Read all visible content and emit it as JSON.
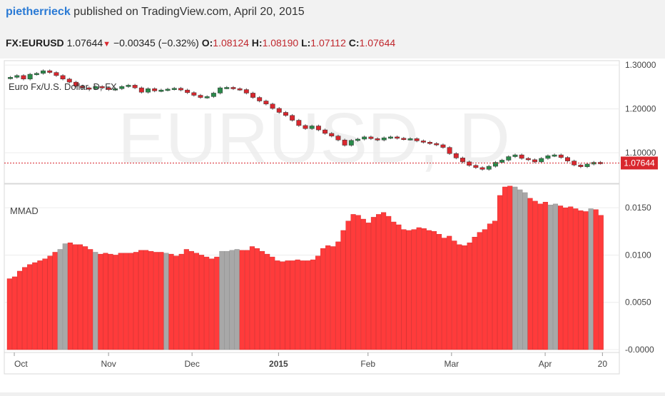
{
  "header": {
    "author": "pietherrieck",
    "published_text": " published on TradingView.com, April 20, 2015",
    "symbol": "FX:EURUSD",
    "last": "1.07644",
    "change": "−0.00345 (−0.32%)",
    "ohlc": [
      {
        "label": "O:",
        "value": "1.08124"
      },
      {
        "label": "H:",
        "value": "1.08190"
      },
      {
        "label": "L:",
        "value": "1.07112"
      },
      {
        "label": "C:",
        "value": "1.07644"
      }
    ]
  },
  "colors": {
    "up": "#2a8a4a",
    "down": "#d9272e",
    "bar_red": "#ff3b3b",
    "bar_gray": "#a8a8a8",
    "price_line": "#d9272e"
  },
  "chart_data": [
    {
      "type": "candlestick",
      "title": "",
      "series_label": "Euro Fx/U.S. Dollar, D, FX",
      "watermark": "EURUSD, D",
      "y_ticks": [
        "1.30000",
        "1.20000",
        "1.10000"
      ],
      "ylim": [
        1.03,
        1.31
      ],
      "last_price_label": "1.07644",
      "last_price": 1.07644,
      "x_ticks": [
        "Oct",
        "Nov",
        "Dec",
        "2015",
        "Feb",
        "Mar",
        "Apr",
        "20"
      ],
      "close_path": [
        1.272,
        1.276,
        1.268,
        1.279,
        1.281,
        1.287,
        1.283,
        1.276,
        1.268,
        1.261,
        1.252,
        1.248,
        1.246,
        1.251,
        1.248,
        1.244,
        1.246,
        1.251,
        1.254,
        1.248,
        1.238,
        1.246,
        1.241,
        1.243,
        1.245,
        1.247,
        1.243,
        1.237,
        1.231,
        1.226,
        1.228,
        1.236,
        1.248,
        1.249,
        1.246,
        1.244,
        1.236,
        1.226,
        1.218,
        1.211,
        1.201,
        1.192,
        1.185,
        1.174,
        1.162,
        1.155,
        1.161,
        1.152,
        1.144,
        1.138,
        1.129,
        1.117,
        1.128,
        1.131,
        1.136,
        1.132,
        1.129,
        1.134,
        1.136,
        1.133,
        1.131,
        1.132,
        1.127,
        1.124,
        1.121,
        1.118,
        1.112,
        1.098,
        1.088,
        1.079,
        1.071,
        1.066,
        1.062,
        1.069,
        1.078,
        1.083,
        1.091,
        1.095,
        1.087,
        1.084,
        1.079,
        1.087,
        1.093,
        1.095,
        1.089,
        1.081,
        1.072,
        1.068,
        1.074,
        1.078,
        1.076
      ]
    },
    {
      "type": "bar",
      "title": "",
      "series_label": "MMAD",
      "y_ticks": [
        "0.0150",
        "0.0100",
        "0.0050",
        "-0.0000"
      ],
      "ylim": [
        -0.0003,
        0.0175
      ],
      "series": [
        {
          "values": [
            0.0075,
            0.0077,
            0.0083,
            0.0087,
            0.009,
            0.0092,
            0.0094,
            0.0096,
            0.0099,
            0.0103,
            0.0106,
            0.0112,
            0.0113,
            0.0111,
            0.0111,
            0.0109,
            0.0106,
            0.0103,
            0.0101,
            0.0102,
            0.0101,
            0.01,
            0.0102,
            0.0102,
            0.0102,
            0.0103,
            0.0105,
            0.0105,
            0.0104,
            0.0103,
            0.0103,
            0.0102,
            0.0101,
            0.0099,
            0.0101,
            0.0106,
            0.0104,
            0.0102,
            0.01,
            0.0098,
            0.0096,
            0.0098,
            0.0104,
            0.0104,
            0.0105,
            0.0106,
            0.0105,
            0.0105,
            0.0109,
            0.0107,
            0.0104,
            0.0101,
            0.0098,
            0.0094,
            0.0093,
            0.0094,
            0.0094,
            0.0095,
            0.0094,
            0.0094,
            0.0095,
            0.0099,
            0.0107,
            0.011,
            0.0109,
            0.0114,
            0.0126,
            0.0136,
            0.0143,
            0.0142,
            0.0138,
            0.0134,
            0.014,
            0.0143,
            0.0145,
            0.0141,
            0.0135,
            0.0132,
            0.0127,
            0.0126,
            0.0127,
            0.0129,
            0.0128,
            0.0126,
            0.0125,
            0.0122,
            0.0118,
            0.012,
            0.0115,
            0.0111,
            0.011,
            0.0113,
            0.0119,
            0.0124,
            0.0127,
            0.0133,
            0.0136,
            0.0163,
            0.0172,
            0.0173,
            0.0172,
            0.0169,
            0.0166,
            0.016,
            0.0157,
            0.0154,
            0.0156,
            0.0153,
            0.0154,
            0.0152,
            0.015,
            0.0151,
            0.0149,
            0.0147,
            0.0146,
            0.0149,
            0.0148,
            0.0142
          ],
          "gray_indices": [
            10,
            11,
            17,
            31,
            42,
            43,
            44,
            45,
            100,
            101,
            102,
            107,
            108,
            115
          ]
        }
      ]
    }
  ]
}
